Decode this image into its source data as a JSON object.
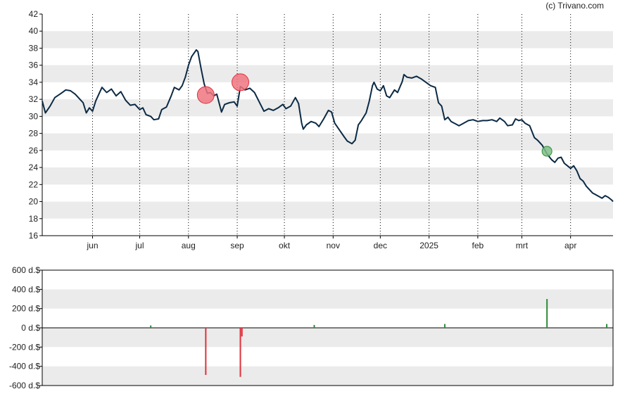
{
  "credit": "(c) Trivano.com",
  "colors": {
    "price_line": "#0b2a45",
    "band": "#ebebeb",
    "sell": "#e0303c",
    "sell_fill": "#f07680",
    "buy": "#2e8b3a",
    "buy_fill": "#7fbf86",
    "axis": "#000000",
    "grid_dot": "#000000"
  },
  "chart_data": [
    {
      "type": "line",
      "title": "",
      "ylim": [
        16,
        42
      ],
      "y_ticks": [
        "16",
        "18",
        "20",
        "22",
        "24",
        "26",
        "28",
        "30",
        "32",
        "34",
        "36",
        "38",
        "40",
        "42"
      ],
      "x_start": "2024-04-30",
      "x_end": "2025-04-28",
      "x_ticks": [
        {
          "date": "2024-06-01",
          "label": "jun"
        },
        {
          "date": "2024-07-01",
          "label": "jul"
        },
        {
          "date": "2024-08-01",
          "label": "aug"
        },
        {
          "date": "2024-09-01",
          "label": "sep"
        },
        {
          "date": "2024-10-01",
          "label": "okt"
        },
        {
          "date": "2024-11-01",
          "label": "nov"
        },
        {
          "date": "2024-12-01",
          "label": "dec"
        },
        {
          "date": "2025-01-01",
          "label": "2025"
        },
        {
          "date": "2025-02-01",
          "label": "feb"
        },
        {
          "date": "2025-03-01",
          "label": "mrt"
        },
        {
          "date": "2025-04-01",
          "label": "apr"
        }
      ],
      "grid": "dotted vertical at month starts, alternating horizontal bands",
      "series": [
        {
          "points": [
            [
              "2024-04-30",
              31.8
            ],
            [
              "2024-05-02",
              30.4
            ],
            [
              "2024-05-05",
              31.2
            ],
            [
              "2024-05-08",
              32.2
            ],
            [
              "2024-05-12",
              32.7
            ],
            [
              "2024-05-15",
              33.1
            ],
            [
              "2024-05-18",
              33.0
            ],
            [
              "2024-05-21",
              32.6
            ],
            [
              "2024-05-24",
              32.0
            ],
            [
              "2024-05-26",
              31.6
            ],
            [
              "2024-05-28",
              30.4
            ],
            [
              "2024-05-30",
              31.0
            ],
            [
              "2024-06-01",
              30.6
            ],
            [
              "2024-06-03",
              31.8
            ],
            [
              "2024-06-05",
              32.6
            ],
            [
              "2024-06-07",
              33.4
            ],
            [
              "2024-06-10",
              32.8
            ],
            [
              "2024-06-13",
              33.2
            ],
            [
              "2024-06-16",
              32.4
            ],
            [
              "2024-06-19",
              32.9
            ],
            [
              "2024-06-22",
              31.9
            ],
            [
              "2024-06-25",
              31.3
            ],
            [
              "2024-06-28",
              31.4
            ],
            [
              "2024-07-01",
              30.8
            ],
            [
              "2024-07-03",
              31.0
            ],
            [
              "2024-07-05",
              30.2
            ],
            [
              "2024-07-08",
              30.0
            ],
            [
              "2024-07-10",
              29.6
            ],
            [
              "2024-07-13",
              29.7
            ],
            [
              "2024-07-15",
              30.8
            ],
            [
              "2024-07-18",
              31.1
            ],
            [
              "2024-07-21",
              32.4
            ],
            [
              "2024-07-23",
              33.4
            ],
            [
              "2024-07-26",
              33.1
            ],
            [
              "2024-07-28",
              33.6
            ],
            [
              "2024-07-30",
              34.6
            ],
            [
              "2024-08-01",
              36.0
            ],
            [
              "2024-08-03",
              37.0
            ],
            [
              "2024-08-06",
              37.8
            ],
            [
              "2024-08-07",
              37.6
            ],
            [
              "2024-08-09",
              35.6
            ],
            [
              "2024-08-11",
              33.8
            ],
            [
              "2024-08-13",
              32.7
            ],
            [
              "2024-08-15",
              32.8
            ],
            [
              "2024-08-17",
              32.4
            ],
            [
              "2024-08-19",
              32.6
            ],
            [
              "2024-08-21",
              31.2
            ],
            [
              "2024-08-22",
              30.5
            ],
            [
              "2024-08-24",
              31.4
            ],
            [
              "2024-08-27",
              31.6
            ],
            [
              "2024-08-30",
              31.7
            ],
            [
              "2024-09-01",
              31.2
            ],
            [
              "2024-09-03",
              33.5
            ],
            [
              "2024-09-06",
              33.1
            ],
            [
              "2024-09-09",
              33.3
            ],
            [
              "2024-09-12",
              32.8
            ],
            [
              "2024-09-15",
              31.7
            ],
            [
              "2024-09-18",
              30.6
            ],
            [
              "2024-09-21",
              30.9
            ],
            [
              "2024-09-24",
              30.7
            ],
            [
              "2024-09-27",
              31.0
            ],
            [
              "2024-09-30",
              31.4
            ],
            [
              "2024-10-02",
              30.9
            ],
            [
              "2024-10-05",
              31.2
            ],
            [
              "2024-10-08",
              32.2
            ],
            [
              "2024-10-10",
              31.5
            ],
            [
              "2024-10-12",
              29.2
            ],
            [
              "2024-10-13",
              28.5
            ],
            [
              "2024-10-15",
              29.0
            ],
            [
              "2024-10-18",
              29.4
            ],
            [
              "2024-10-21",
              29.2
            ],
            [
              "2024-10-23",
              28.8
            ],
            [
              "2024-10-26",
              29.7
            ],
            [
              "2024-10-29",
              30.7
            ],
            [
              "2024-10-31",
              30.5
            ],
            [
              "2024-11-02",
              29.2
            ],
            [
              "2024-11-05",
              28.4
            ],
            [
              "2024-11-08",
              27.6
            ],
            [
              "2024-11-10",
              27.1
            ],
            [
              "2024-11-13",
              26.8
            ],
            [
              "2024-11-15",
              27.2
            ],
            [
              "2024-11-17",
              29.0
            ],
            [
              "2024-11-19",
              29.5
            ],
            [
              "2024-11-22",
              30.4
            ],
            [
              "2024-11-24",
              31.8
            ],
            [
              "2024-11-26",
              33.6
            ],
            [
              "2024-11-27",
              34.0
            ],
            [
              "2024-11-29",
              33.2
            ],
            [
              "2024-12-01",
              33.0
            ],
            [
              "2024-12-03",
              33.6
            ],
            [
              "2024-12-05",
              32.4
            ],
            [
              "2024-12-07",
              32.2
            ],
            [
              "2024-12-10",
              33.1
            ],
            [
              "2024-12-12",
              32.8
            ],
            [
              "2024-12-15",
              34.1
            ],
            [
              "2024-12-16",
              34.9
            ],
            [
              "2024-12-18",
              34.6
            ],
            [
              "2024-12-21",
              34.5
            ],
            [
              "2024-12-24",
              34.7
            ],
            [
              "2024-12-27",
              34.4
            ],
            [
              "2024-12-30",
              34.0
            ],
            [
              "2025-01-02",
              33.6
            ],
            [
              "2025-01-05",
              33.4
            ],
            [
              "2025-01-07",
              31.6
            ],
            [
              "2025-01-09",
              31.2
            ],
            [
              "2025-01-11",
              29.6
            ],
            [
              "2025-01-13",
              29.9
            ],
            [
              "2025-01-15",
              29.4
            ],
            [
              "2025-01-18",
              29.1
            ],
            [
              "2025-01-20",
              28.9
            ],
            [
              "2025-01-23",
              29.2
            ],
            [
              "2025-01-26",
              29.5
            ],
            [
              "2025-01-29",
              29.6
            ],
            [
              "2025-02-01",
              29.4
            ],
            [
              "2025-02-04",
              29.5
            ],
            [
              "2025-02-07",
              29.5
            ],
            [
              "2025-02-10",
              29.6
            ],
            [
              "2025-02-13",
              29.4
            ],
            [
              "2025-02-15",
              29.8
            ],
            [
              "2025-02-18",
              29.4
            ],
            [
              "2025-02-20",
              28.9
            ],
            [
              "2025-02-23",
              29.0
            ],
            [
              "2025-02-25",
              29.7
            ],
            [
              "2025-02-27",
              29.5
            ],
            [
              "2025-03-01",
              29.6
            ],
            [
              "2025-03-03",
              29.2
            ],
            [
              "2025-03-06",
              28.9
            ],
            [
              "2025-03-09",
              27.5
            ],
            [
              "2025-03-11",
              27.2
            ],
            [
              "2025-03-14",
              26.6
            ],
            [
              "2025-03-17",
              25.6
            ],
            [
              "2025-03-20",
              24.9
            ],
            [
              "2025-03-22",
              24.6
            ],
            [
              "2025-03-24",
              25.1
            ],
            [
              "2025-03-26",
              25.2
            ],
            [
              "2025-03-28",
              24.5
            ],
            [
              "2025-03-30",
              24.2
            ],
            [
              "2025-04-01",
              23.9
            ],
            [
              "2025-04-03",
              24.2
            ],
            [
              "2025-04-05",
              23.6
            ],
            [
              "2025-04-07",
              22.7
            ],
            [
              "2025-04-09",
              22.4
            ],
            [
              "2025-04-11",
              21.8
            ],
            [
              "2025-04-13",
              21.4
            ],
            [
              "2025-04-15",
              21.0
            ],
            [
              "2025-04-17",
              20.8
            ],
            [
              "2025-04-19",
              20.6
            ],
            [
              "2025-04-21",
              20.4
            ],
            [
              "2025-04-23",
              20.7
            ],
            [
              "2025-04-25",
              20.5
            ],
            [
              "2025-04-27",
              20.2
            ],
            [
              "2025-04-28",
              20.0
            ]
          ]
        }
      ],
      "markers": [
        {
          "date": "2024-08-12",
          "value": 32.5,
          "type": "sell",
          "size": "large"
        },
        {
          "date": "2024-09-03",
          "value": 34.0,
          "type": "sell",
          "size": "large"
        },
        {
          "date": "2025-03-17",
          "value": 25.9,
          "type": "buy",
          "size": "small"
        }
      ]
    },
    {
      "type": "bar",
      "title": "",
      "ylim": [
        -600,
        600
      ],
      "y_ticks": [
        "-600 d.$",
        "-400 d.$",
        "-200 d.$",
        "0 d.$",
        "200 d.$",
        "400 d.$",
        "600 d.$"
      ],
      "unit": "d.$",
      "bars": [
        {
          "date": "2024-07-08",
          "value": 25,
          "type": "buy"
        },
        {
          "date": "2024-08-12",
          "value": -490,
          "type": "sell"
        },
        {
          "date": "2024-09-03",
          "value": -510,
          "type": "sell"
        },
        {
          "date": "2024-09-04",
          "value": -90,
          "type": "sell"
        },
        {
          "date": "2024-10-20",
          "value": 30,
          "type": "buy"
        },
        {
          "date": "2025-01-11",
          "value": 40,
          "type": "buy"
        },
        {
          "date": "2025-03-17",
          "value": 300,
          "type": "buy"
        },
        {
          "date": "2025-04-24",
          "value": 40,
          "type": "buy"
        }
      ]
    }
  ]
}
